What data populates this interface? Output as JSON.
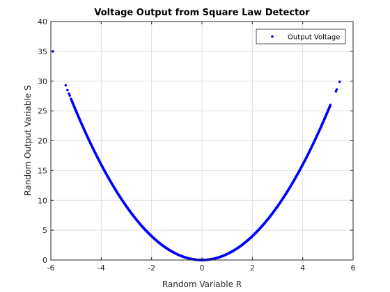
{
  "chart_data": {
    "type": "scatter",
    "title": "Voltage Output from Square Law Detector",
    "xlabel": "Random Variable R",
    "ylabel": "Random Output Variable S",
    "xlim": [
      -6,
      6
    ],
    "ylim": [
      0,
      40
    ],
    "xticks": [
      -6,
      -4,
      -2,
      0,
      2,
      4,
      6
    ],
    "yticks": [
      0,
      5,
      10,
      15,
      20,
      25,
      30,
      35,
      40
    ],
    "xtick_labels": [
      "-6",
      "-4",
      "-2",
      "0",
      "2",
      "4",
      "6"
    ],
    "ytick_labels": [
      "0",
      "5",
      "10",
      "15",
      "20",
      "25",
      "30",
      "35",
      "40"
    ],
    "grid": true,
    "legend_position": "top-right",
    "series": [
      {
        "name": "Output Voltage",
        "color": "#0000ff",
        "marker": "dot",
        "relation": "S = R^2",
        "x_range": [
          -5.2,
          5.1
        ],
        "x_step": 0.005,
        "outliers": [
          {
            "x": -5.92,
            "y": 35.0
          },
          {
            "x": -5.41,
            "y": 29.3
          },
          {
            "x": -5.34,
            "y": 28.5
          },
          {
            "x": -5.28,
            "y": 27.9
          },
          {
            "x": -5.25,
            "y": 27.6
          },
          {
            "x": 5.32,
            "y": 28.3
          },
          {
            "x": 5.35,
            "y": 28.6
          },
          {
            "x": 5.47,
            "y": 29.9
          }
        ]
      }
    ]
  },
  "colors": {
    "axis": "#262626",
    "grid": "#dfdfdf",
    "marker": "#0000ff"
  }
}
